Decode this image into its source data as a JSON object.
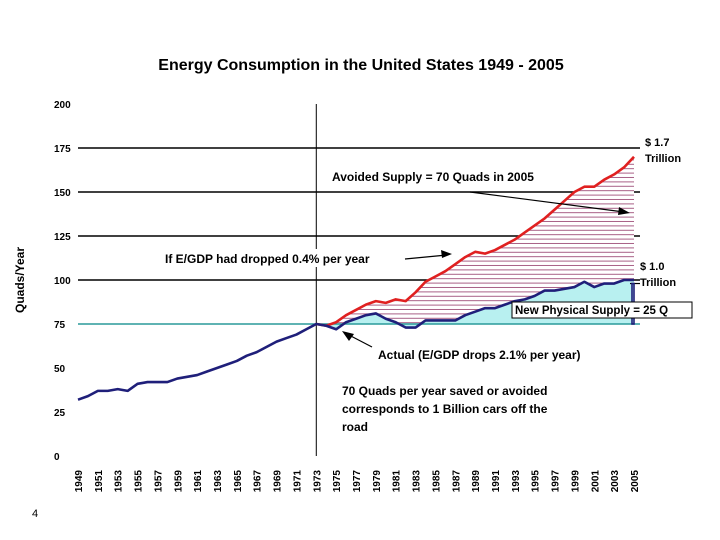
{
  "slide_number": "4",
  "chart_data": {
    "type": "line",
    "title": "Energy Consumption in the United States 1949 - 2005",
    "ylabel": "Quads/Year",
    "xlabel": "",
    "ylim": [
      0,
      200
    ],
    "xlim": [
      1949,
      2005
    ],
    "yticks": [
      0,
      25,
      50,
      75,
      100,
      125,
      150,
      175,
      200
    ],
    "xtick_labels": [
      "1949",
      "1951",
      "1953",
      "1955",
      "1957",
      "1959",
      "1961",
      "1963",
      "1965",
      "1967",
      "1969",
      "1971",
      "1973",
      "1975",
      "1977",
      "1979",
      "1981",
      "1983",
      "1985",
      "1987",
      "1989",
      "1991",
      "1993",
      "1995",
      "1997",
      "1999",
      "2001",
      "2003",
      "2005"
    ],
    "reference_lines": [
      175,
      125,
      100,
      150
    ],
    "divider_year": 1973,
    "baseline_level": 75,
    "upper_level": 98,
    "series": [
      {
        "name": "Actual",
        "color": "#1f1f7a",
        "x": [
          1949,
          1950,
          1951,
          1952,
          1953,
          1954,
          1955,
          1956,
          1957,
          1958,
          1959,
          1960,
          1961,
          1962,
          1963,
          1964,
          1965,
          1966,
          1967,
          1968,
          1969,
          1970,
          1971,
          1972,
          1973,
          1974,
          1975,
          1976,
          1977,
          1978,
          1979,
          1980,
          1981,
          1982,
          1983,
          1984,
          1985,
          1986,
          1987,
          1988,
          1989,
          1990,
          1991,
          1992,
          1993,
          1994,
          1995,
          1996,
          1997,
          1998,
          1999,
          2000,
          2001,
          2002,
          2003,
          2004,
          2005
        ],
        "values": [
          32,
          34,
          37,
          37,
          38,
          37,
          41,
          42,
          42,
          42,
          44,
          45,
          46,
          48,
          50,
          52,
          54,
          57,
          59,
          62,
          65,
          67,
          69,
          72,
          75,
          74,
          72,
          76,
          78,
          80,
          81,
          78,
          76,
          73,
          73,
          77,
          77,
          77,
          77,
          80,
          82,
          84,
          84,
          86,
          88,
          89,
          91,
          94,
          94,
          95,
          96,
          99,
          96,
          98,
          98,
          100,
          100
        ]
      },
      {
        "name": "If E/GDP had dropped 0.4% per year",
        "color": "#e02020",
        "x": [
          1973,
          1974,
          1975,
          1976,
          1977,
          1978,
          1979,
          1980,
          1981,
          1982,
          1983,
          1984,
          1985,
          1986,
          1987,
          1988,
          1989,
          1990,
          1991,
          1992,
          1993,
          1994,
          1995,
          1996,
          1997,
          1998,
          1999,
          2000,
          2001,
          2002,
          2003,
          2004,
          2005
        ],
        "values": [
          75,
          74,
          76,
          80,
          83,
          86,
          88,
          87,
          89,
          88,
          93,
          99,
          102,
          105,
          109,
          113,
          116,
          115,
          117,
          120,
          123,
          127,
          131,
          135,
          140,
          145,
          150,
          153,
          153,
          157,
          160,
          164,
          170
        ]
      }
    ],
    "annotations": [
      {
        "text": "Avoided Supply = 70 Quads in 2005"
      },
      {
        "text": "If E/GDP had dropped 0.4% per year"
      },
      {
        "text": "New Physical Supply = 25 Q"
      },
      {
        "text": "Actual (E/GDP drops 2.1% per year)"
      },
      {
        "text": "70 Quads per year saved or avoided"
      },
      {
        "text": "corresponds to 1 Billion cars off the"
      },
      {
        "text": "road"
      },
      {
        "text": "$ 1.7"
      },
      {
        "text": "Trillion"
      },
      {
        "text": "$ 1.0"
      },
      {
        "text": "Trillion"
      }
    ]
  }
}
